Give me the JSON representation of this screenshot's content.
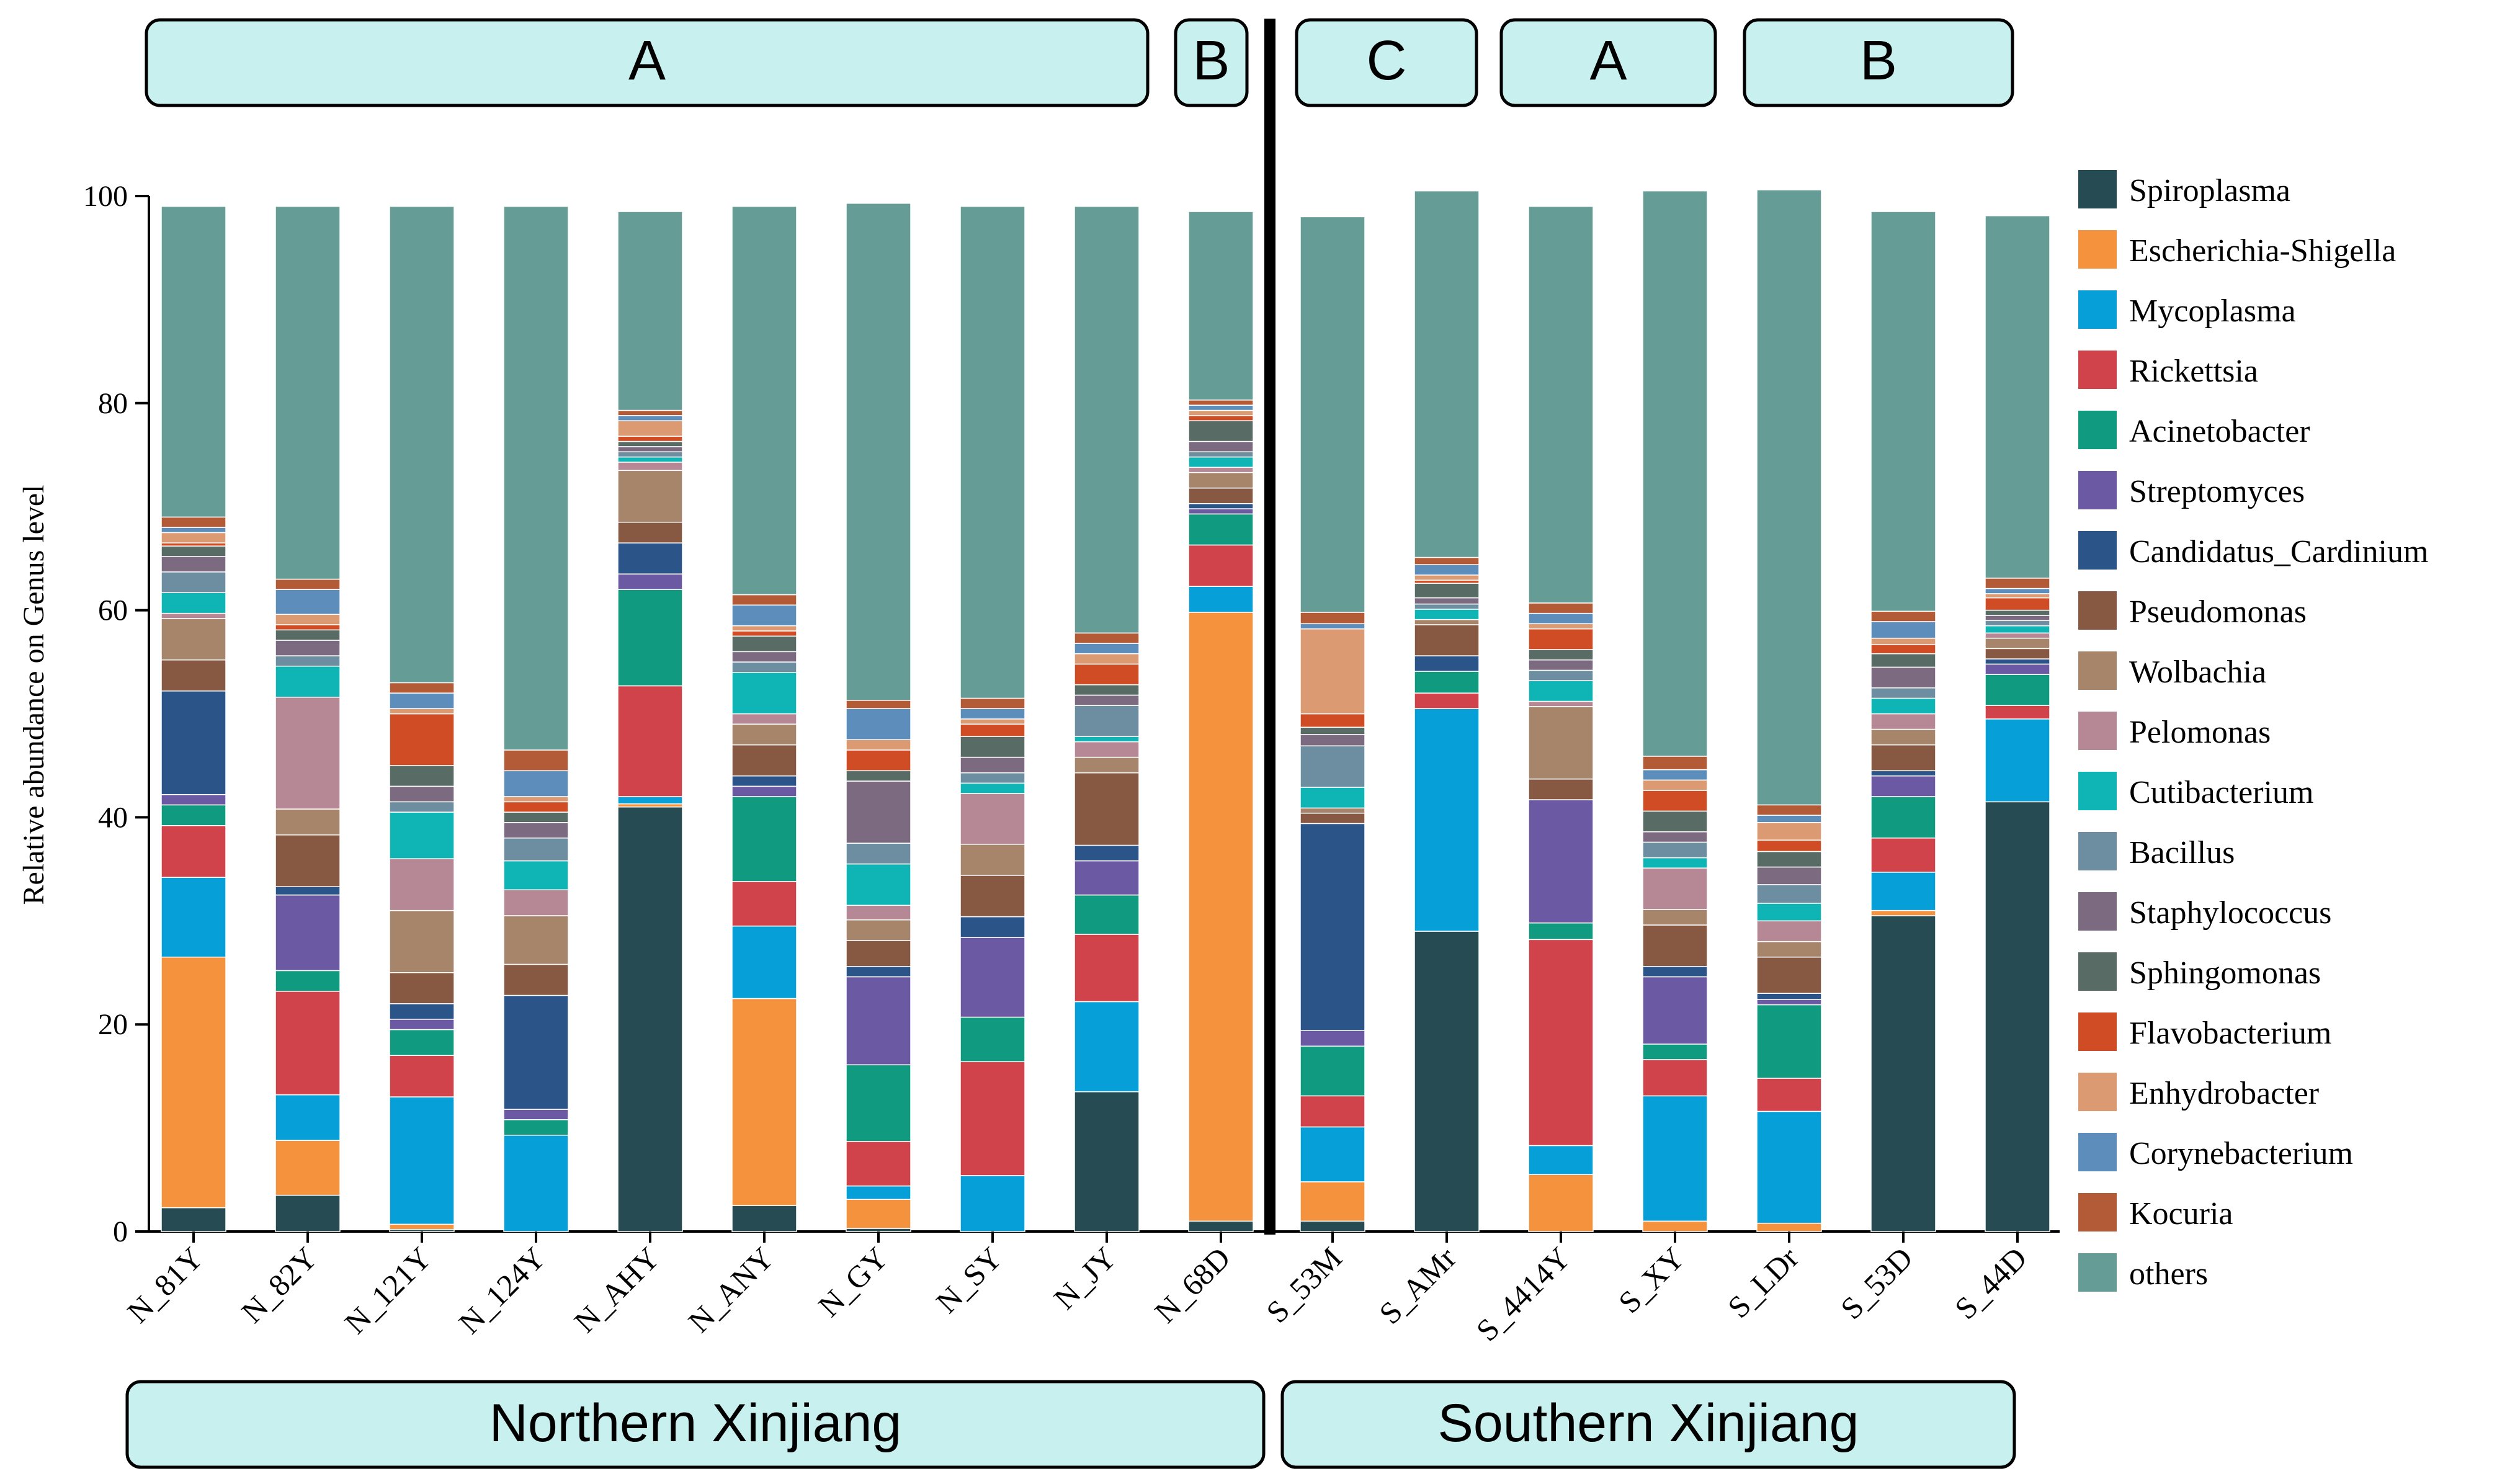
{
  "chart_data": {
    "type": "bar",
    "stacked": true,
    "ylabel": "Relative abundance on Genus level",
    "xlabel": "",
    "ylim": [
      0,
      100
    ],
    "yticks": [
      0,
      20,
      40,
      60,
      80,
      100
    ],
    "legend_position": "right",
    "categories": [
      "N_81Y",
      "N_82Y",
      "N_121Y",
      "N_124Y",
      "N_AHY",
      "N_ANY",
      "N_GY",
      "N_SY",
      "N_JY",
      "N_68D",
      "S_53M",
      "S_AMr",
      "S_4414Y",
      "S_XY",
      "S_LDr",
      "S_53D",
      "S_44D"
    ],
    "series": [
      {
        "name": "Spiroplasma",
        "color": "#264b52",
        "values": [
          2.3,
          3.5,
          0.2,
          0,
          41,
          2.5,
          0.3,
          0,
          13.5,
          1,
          1,
          29,
          0,
          0,
          0,
          30.5,
          41.5
        ]
      },
      {
        "name": "Escherichia-Shigella",
        "color": "#f5923e",
        "values": [
          24.2,
          5.3,
          0.5,
          0,
          0.3,
          20,
          2.8,
          0,
          0,
          58.8,
          3.8,
          0,
          5.5,
          1,
          0.8,
          0.5,
          0
        ]
      },
      {
        "name": "Mycoplasma",
        "color": "#069fd8",
        "values": [
          7.7,
          4.4,
          12.3,
          9.3,
          0.7,
          7,
          1.3,
          5.4,
          8.7,
          2.5,
          5.3,
          21.5,
          2.8,
          12.1,
          10.8,
          3.7,
          8
        ]
      },
      {
        "name": "Rickettsia",
        "color": "#d1434b",
        "values": [
          5,
          10,
          4,
          0,
          10.7,
          4.3,
          4.3,
          11,
          6.5,
          4,
          3,
          1.5,
          19.9,
          3.5,
          3.2,
          3.3,
          1.3
        ]
      },
      {
        "name": "Acinetobacter",
        "color": "#109a80",
        "values": [
          2,
          2,
          2.5,
          1.5,
          9.3,
          8.2,
          7.4,
          4.3,
          3.8,
          3,
          4.8,
          2.1,
          1.6,
          1.5,
          7.1,
          4,
          3
        ]
      },
      {
        "name": "Streptomyces",
        "color": "#6b59a3",
        "values": [
          1,
          7.3,
          1,
          1,
          1.5,
          1,
          8.5,
          7.7,
          3.3,
          0.5,
          1.5,
          0,
          11.9,
          6.5,
          0.5,
          2,
          1
        ]
      },
      {
        "name": "Candidatus_Cardinium",
        "color": "#2b5488",
        "values": [
          10,
          0.8,
          1.5,
          11,
          3,
          1,
          1,
          2,
          1.5,
          0.5,
          20,
          1.5,
          0,
          1,
          0.6,
          0.5,
          0.5
        ]
      },
      {
        "name": "Pseudomonas",
        "color": "#875942",
        "values": [
          3,
          5,
          3,
          3,
          2,
          3,
          2.5,
          4,
          7,
          1.5,
          1,
          3,
          2,
          4,
          3.5,
          2.5,
          1
        ]
      },
      {
        "name": "Wolbachia",
        "color": "#a6856b",
        "values": [
          4,
          2.5,
          6,
          4.7,
          5,
          2,
          2,
          3,
          1.5,
          1.5,
          0.5,
          0.5,
          7,
          1.5,
          1.5,
          1.5,
          1
        ]
      },
      {
        "name": "Pelomonas",
        "color": "#b68896",
        "values": [
          0.5,
          10.8,
          5,
          2.5,
          0.8,
          1,
          1.4,
          4.9,
          1.5,
          0.5,
          0,
          0,
          0.5,
          4,
          2,
          1.5,
          0.5
        ]
      },
      {
        "name": "Cutibacterium",
        "color": "#0fb5b5",
        "values": [
          2,
          3,
          4.5,
          2.8,
          0.5,
          4,
          4,
          1,
          0.5,
          1,
          2,
          1,
          2,
          1,
          1.7,
          1.5,
          0.7
        ]
      },
      {
        "name": "Bacillus",
        "color": "#6d8ea0",
        "values": [
          2,
          1,
          1,
          2.2,
          0.5,
          1,
          2,
          1,
          3,
          0.5,
          4,
          0.5,
          1,
          1.5,
          1.8,
          1,
          0.5
        ]
      },
      {
        "name": "Staphylococcus",
        "color": "#7b6a80",
        "values": [
          1.5,
          1.5,
          1.5,
          1.5,
          0.5,
          1,
          6,
          1.5,
          1,
          1,
          1.1,
          0.6,
          1,
          1,
          1.7,
          2,
          0.5
        ]
      },
      {
        "name": "Sphingomonas",
        "color": "#586c65",
        "values": [
          1,
          1,
          2,
          1,
          0.5,
          1.5,
          1,
          2,
          1,
          2,
          0.7,
          1.4,
          1,
          2,
          1.5,
          1.3,
          0.5
        ]
      },
      {
        "name": "Flavobacterium",
        "color": "#cf4c25",
        "values": [
          0.3,
          0.5,
          5,
          1,
          0.5,
          0.5,
          2,
          1.2,
          2,
          0.5,
          1.3,
          0.3,
          2,
          2,
          1.1,
          0.9,
          1.2
        ]
      },
      {
        "name": "Enhydrobacter",
        "color": "#dc9a72",
        "values": [
          1,
          1,
          0.5,
          0.5,
          1.5,
          0.5,
          1,
          0.5,
          1,
          0.5,
          8.2,
          0.5,
          0.5,
          1,
          1.7,
          0.6,
          0.4
        ]
      },
      {
        "name": "Corynebacterium",
        "color": "#5d8dba",
        "values": [
          0.5,
          2.4,
          1.5,
          2.5,
          0.5,
          2,
          3,
          1,
          1,
          0.5,
          0.5,
          1,
          1,
          1,
          0.7,
          1.6,
          0.5
        ]
      },
      {
        "name": "Kocuria",
        "color": "#b35a36",
        "values": [
          1,
          1,
          1,
          2,
          0.5,
          1,
          0.8,
          1,
          1,
          0.5,
          1.1,
          0.7,
          1,
          1.3,
          1,
          1,
          1
        ]
      },
      {
        "name": "others",
        "color": "#659c95",
        "values": [
          30,
          36,
          46,
          52.5,
          19.2,
          37.5,
          48,
          47.5,
          41.2,
          18.2,
          38.2,
          35.4,
          38.3,
          54.6,
          59.4,
          38.6,
          35
        ]
      }
    ],
    "top_groups": [
      {
        "label": "A",
        "samples": "N_81Y–N_JY"
      },
      {
        "label": "B",
        "samples": "N_68D"
      },
      {
        "label": "C",
        "samples": "S_53M"
      },
      {
        "label": "A",
        "samples": "S_AMr–S_4414Y"
      },
      {
        "label": "B",
        "samples": "S_XY–S_44D"
      }
    ],
    "regions": [
      {
        "label": "Northern Xinjiang"
      },
      {
        "label": "Southern  Xinjiang"
      }
    ]
  }
}
